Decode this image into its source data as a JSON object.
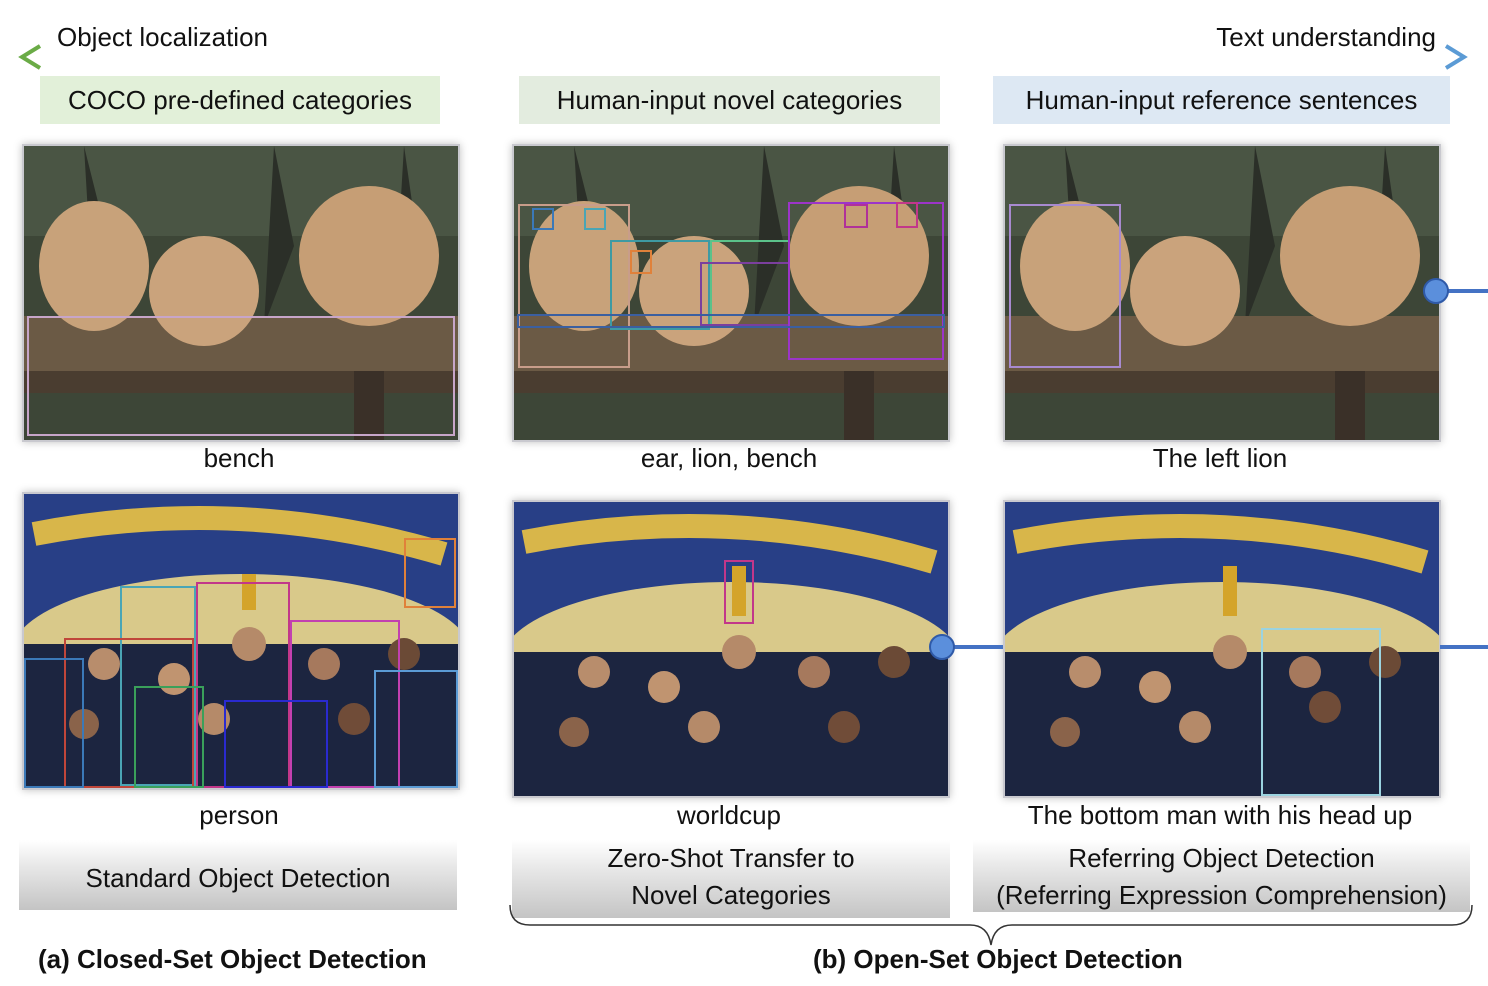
{
  "axis": {
    "left_label": "Object localization",
    "right_label": "Text understanding"
  },
  "columns": [
    {
      "header": "COCO pre-defined categories",
      "header_color": "#e2f0d9",
      "caption_top": "bench",
      "caption_bottom": "person"
    },
    {
      "header": "Human-input novel categories",
      "header_color": "#e3ecdf",
      "caption_top": "ear, lion, bench",
      "caption_bottom": "worldcup"
    },
    {
      "header": "Human-input reference sentences",
      "header_color": "#dde8f3",
      "caption_top": "The left lion",
      "caption_bottom": "The bottom man with his head up"
    }
  ],
  "tasks": {
    "standard": "Standard Object Detection",
    "zero_shot_line1": "Zero-Shot Transfer to",
    "zero_shot_line2": "Novel Categories",
    "referring_line1": "Referring Object Detection",
    "referring_line2": "(Referring Expression Comprehension)"
  },
  "footer": {
    "closed_set": "(a) Closed-Set Object Detection",
    "open_set": "(b) Open-Set Object Detection"
  },
  "colors": {
    "arrow_left": "#70ad47",
    "arrow_right": "#5b9bd5",
    "connector": "#4472c4"
  }
}
